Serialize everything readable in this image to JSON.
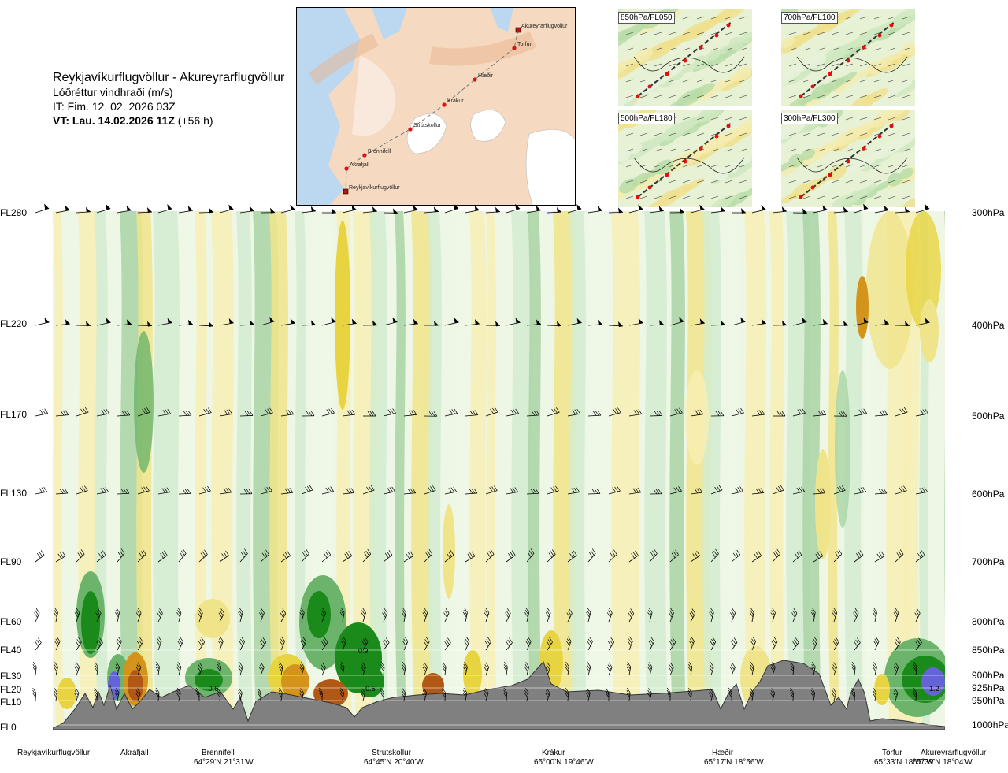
{
  "header": {
    "route": "Reykjavíkurflugvöllur - Akureyrarflugvöllur",
    "parameter": "Lóðréttur vindhraði (m/s)",
    "issue_time": "IT: Fim. 12. 02. 2026 03Z",
    "valid_label": "VT: Lau. 14.02.2026 11Z",
    "valid_offset": "(+56 h)"
  },
  "route_map": {
    "waypoints": [
      {
        "name": "Akureyrarflugvöllur",
        "kind": "airport"
      },
      {
        "name": "Torfur",
        "kind": "waypoint"
      },
      {
        "name": "Hæðir",
        "kind": "waypoint"
      },
      {
        "name": "Krákur",
        "kind": "waypoint"
      },
      {
        "name": "Strútskollur",
        "kind": "waypoint"
      },
      {
        "name": "Brennifell",
        "kind": "waypoint"
      },
      {
        "name": "Akrafjall",
        "kind": "waypoint"
      },
      {
        "name": "Reykjavíkurflugvöllur",
        "kind": "airport"
      }
    ],
    "colors": {
      "land": "#f0c8a8",
      "sea": "#bcd8f0",
      "ice": "#ffffff",
      "route": "#777777",
      "point": "#e01010"
    }
  },
  "level_maps": [
    {
      "label": "850hPa/FL050"
    },
    {
      "label": "700hPa/FL100"
    },
    {
      "label": "500hPa/FL180"
    },
    {
      "label": "300hPa/FL300"
    }
  ],
  "chart_data": {
    "type": "heatmap",
    "title": "Reykjavíkurflugvöllur - Akureyrarflugvöllur",
    "variable": "Lóðréttur vindhraði (m/s)",
    "left_axis": {
      "labels": [
        "FL280",
        "FL220",
        "FL170",
        "FL130",
        "FL90",
        "FL60",
        "FL40",
        "FL30",
        "FL20",
        "FL10",
        "FL0"
      ],
      "values_ft": [
        28000,
        22000,
        17000,
        13000,
        9000,
        6000,
        4000,
        3000,
        2000,
        1000,
        0
      ]
    },
    "right_axis": {
      "labels": [
        "300hPa",
        "400hPa",
        "500hPa",
        "600hPa",
        "700hPa",
        "800hPa",
        "850hPa",
        "900hPa",
        "925hPa",
        "950hPa",
        "1000hPa"
      ],
      "values_hpa": [
        300,
        400,
        500,
        600,
        700,
        800,
        850,
        900,
        925,
        950,
        1000
      ]
    },
    "x_axis": {
      "distance_range_km": [
        0,
        250
      ],
      "points": [
        {
          "name": "Reykjavíkurflugvöllur",
          "coord": "",
          "km": 0
        },
        {
          "name": "Akrafjall",
          "coord": "",
          "km": 20
        },
        {
          "name": "Brennifell",
          "coord": "64°29'N 21°31'W",
          "km": 45
        },
        {
          "name": "Strútskollur",
          "coord": "64°45'N 20°40'W",
          "km": 95
        },
        {
          "name": "Krákur",
          "coord": "65°00'N 19°46'W",
          "km": 140
        },
        {
          "name": "Hæðir",
          "coord": "65°17'N 18°56'W",
          "km": 187
        },
        {
          "name": "Torfur",
          "coord": "65°33'N 18°07'W",
          "km": 237
        },
        {
          "name": "Akureyrarflugvöllur",
          "coord": "65°39'N 18°04'W",
          "km": 250
        }
      ]
    },
    "value_labels": [
      {
        "km": 17,
        "level_hpa": 955,
        "text": "1.8"
      },
      {
        "km": 45,
        "level_hpa": 925,
        "text": "0.6"
      },
      {
        "km": 87,
        "level_hpa": 850,
        "text": "0.9"
      },
      {
        "km": 89,
        "level_hpa": 925,
        "text": "0.5"
      },
      {
        "km": 247,
        "level_hpa": 925,
        "text": "1.2"
      }
    ],
    "colors": {
      "strong_up": "#1a8a1a",
      "up": "#6cb46c",
      "weak_up": "#a9d4a4",
      "near_zero_up": "#d4ecd0",
      "neutral": "#eef7e6",
      "near_zero_down": "#f7efb4",
      "weak_down": "#f0e48a",
      "down": "#e8d440",
      "strong_down": "#d4941c",
      "very_strong_down": "#b05814",
      "max_up": "#6464d8",
      "terrain": "#808080"
    }
  }
}
